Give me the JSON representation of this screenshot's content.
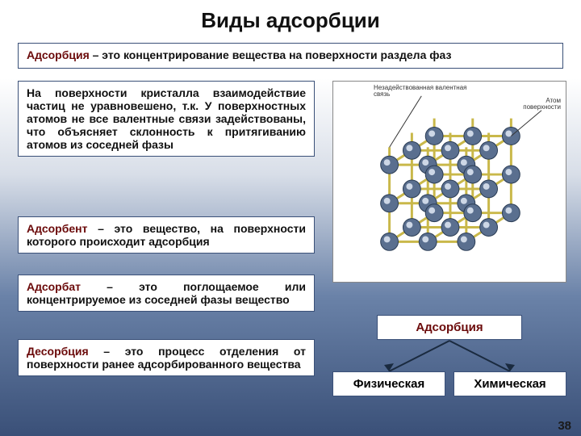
{
  "title": "Виды  адсорбции",
  "def_main_term": "Адсорбция",
  "def_main_rest": " – это  концентрирование  вещества  на  поверхности  раздела  фаз",
  "para_crystal": "На поверхности кристалла взаимодействие частиц не уравновешено, т.к. У поверхностных атомов не все валентные связи задействованы, что объясняет склонность к притягиванию атомов из соседней фазы",
  "def_adsorbent_term": "Адсорбент",
  "def_adsorbent_rest": " – это вещество, на поверхности которого происходит адсорбция",
  "def_adsorbat_term": "Адсорбат",
  "def_adsorbat_rest": " – это поглощаемое или концентрируемое из соседней фазы вещество",
  "def_desorb_term": "Десорбция",
  "def_desorb_rest": " – это процесс отделения от поверхности ранее адсорбированного вещества",
  "fig_label1": "Незадействованная валентная связь",
  "fig_label2": "Атом поверхности",
  "tree_root": "Адсорбция",
  "tree_left": "Физическая",
  "tree_right": "Химическая",
  "page": "38",
  "colors": {
    "term": "#6b0a0a",
    "border": "#3a5078",
    "atom_fill": "#5a6f8f",
    "atom_stroke": "#2b3d55",
    "bond": "#c9b84a"
  }
}
